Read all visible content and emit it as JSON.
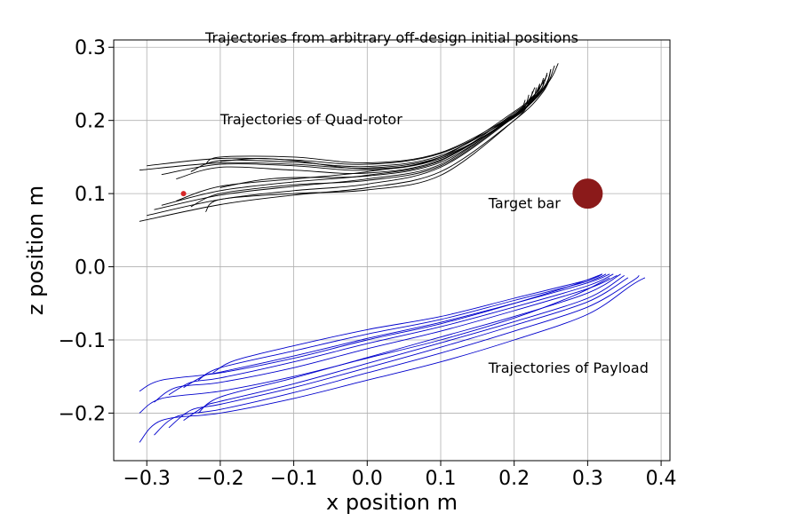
{
  "chart_data": {
    "type": "line",
    "title": "Trajectories from arbitrary off-design initial positions",
    "xlabel": "x position m",
    "ylabel": "z position m",
    "xlim": [
      -0.345,
      0.412
    ],
    "ylim": [
      -0.265,
      0.31
    ],
    "xticks": [
      -0.3,
      -0.2,
      -0.1,
      0.0,
      0.1,
      0.2,
      0.3,
      0.4
    ],
    "xtick_labels": [
      "−0.3",
      "−0.2",
      "−0.1",
      "0.0",
      "0.1",
      "0.2",
      "0.3",
      "0.4"
    ],
    "yticks": [
      -0.2,
      -0.1,
      0.0,
      0.1,
      0.2,
      0.3
    ],
    "ytick_labels": [
      "−0.2",
      "−0.1",
      "0.0",
      "0.1",
      "0.2",
      "0.3"
    ],
    "grid": true,
    "colors": {
      "quad_rotor": "#000000",
      "payload": "#0000cc",
      "target": "#8b1a1a",
      "start_marker": "#d62728"
    },
    "annotations": [
      {
        "text": "Trajectories of Quad-rotor",
        "x": -0.2,
        "y": 0.195
      },
      {
        "text": "Target bar",
        "x": 0.165,
        "y": 0.08
      },
      {
        "text": "Trajectories of Payload",
        "x": 0.165,
        "y": -0.145
      }
    ],
    "target_bar": {
      "x": 0.3,
      "y": 0.1
    },
    "start_marker": {
      "x": -0.25,
      "y": 0.1
    },
    "series": [
      {
        "group": "quad",
        "points": [
          [
            -0.31,
            0.062
          ],
          [
            -0.2,
            0.085
          ],
          [
            -0.1,
            0.098
          ],
          [
            0.0,
            0.108
          ],
          [
            0.1,
            0.13
          ],
          [
            0.2,
            0.2
          ],
          [
            0.24,
            0.24
          ],
          [
            0.255,
            0.275
          ]
        ]
      },
      {
        "group": "quad",
        "points": [
          [
            -0.3,
            0.07
          ],
          [
            -0.2,
            0.092
          ],
          [
            -0.1,
            0.104
          ],
          [
            0.0,
            0.113
          ],
          [
            0.1,
            0.136
          ],
          [
            0.2,
            0.205
          ],
          [
            0.24,
            0.242
          ],
          [
            0.25,
            0.27
          ]
        ]
      },
      {
        "group": "quad",
        "points": [
          [
            -0.29,
            0.078
          ],
          [
            -0.2,
            0.098
          ],
          [
            -0.1,
            0.11
          ],
          [
            0.0,
            0.12
          ],
          [
            0.1,
            0.14
          ],
          [
            0.2,
            0.208
          ],
          [
            0.23,
            0.238
          ],
          [
            0.245,
            0.262
          ]
        ]
      },
      {
        "group": "quad",
        "points": [
          [
            -0.28,
            0.084
          ],
          [
            -0.2,
            0.104
          ],
          [
            -0.1,
            0.116
          ],
          [
            0.0,
            0.125
          ],
          [
            0.1,
            0.145
          ],
          [
            0.2,
            0.21
          ],
          [
            0.235,
            0.24
          ],
          [
            0.24,
            0.255
          ]
        ]
      },
      {
        "group": "quad",
        "points": [
          [
            -0.26,
            0.09
          ],
          [
            -0.2,
            0.11
          ],
          [
            -0.1,
            0.12
          ],
          [
            0.0,
            0.13
          ],
          [
            0.1,
            0.15
          ],
          [
            0.2,
            0.212
          ],
          [
            0.23,
            0.238
          ],
          [
            0.235,
            0.25
          ]
        ]
      },
      {
        "group": "quad",
        "points": [
          [
            -0.24,
            0.082
          ],
          [
            -0.2,
            0.1
          ],
          [
            -0.1,
            0.112
          ],
          [
            0.0,
            0.118
          ],
          [
            0.1,
            0.138
          ],
          [
            0.2,
            0.206
          ],
          [
            0.225,
            0.228
          ],
          [
            0.23,
            0.245
          ]
        ]
      },
      {
        "group": "quad",
        "points": [
          [
            -0.22,
            0.075
          ],
          [
            -0.2,
            0.092
          ],
          [
            -0.1,
            0.1
          ],
          [
            0.0,
            0.105
          ],
          [
            0.1,
            0.125
          ],
          [
            0.2,
            0.2
          ],
          [
            0.22,
            0.225
          ],
          [
            0.225,
            0.24
          ]
        ]
      },
      {
        "group": "quad",
        "points": [
          [
            -0.31,
            0.132
          ],
          [
            -0.2,
            0.142
          ],
          [
            -0.1,
            0.14
          ],
          [
            0.0,
            0.135
          ],
          [
            0.1,
            0.15
          ],
          [
            0.2,
            0.204
          ],
          [
            0.245,
            0.25
          ],
          [
            0.26,
            0.278
          ]
        ]
      },
      {
        "group": "quad",
        "points": [
          [
            -0.3,
            0.138
          ],
          [
            -0.2,
            0.148
          ],
          [
            -0.1,
            0.146
          ],
          [
            0.0,
            0.14
          ],
          [
            0.1,
            0.155
          ],
          [
            0.2,
            0.206
          ],
          [
            0.24,
            0.245
          ],
          [
            0.25,
            0.27
          ]
        ]
      },
      {
        "group": "quad",
        "points": [
          [
            -0.28,
            0.126
          ],
          [
            -0.2,
            0.14
          ],
          [
            -0.1,
            0.138
          ],
          [
            0.0,
            0.132
          ],
          [
            0.1,
            0.148
          ],
          [
            0.2,
            0.205
          ],
          [
            0.235,
            0.24
          ],
          [
            0.245,
            0.265
          ]
        ]
      },
      {
        "group": "quad",
        "points": [
          [
            -0.26,
            0.12
          ],
          [
            -0.2,
            0.136
          ],
          [
            -0.1,
            0.132
          ],
          [
            0.0,
            0.128
          ],
          [
            0.1,
            0.146
          ],
          [
            0.2,
            0.206
          ],
          [
            0.23,
            0.235
          ],
          [
            0.24,
            0.258
          ]
        ]
      },
      {
        "group": "quad",
        "points": [
          [
            -0.24,
            0.13
          ],
          [
            -0.2,
            0.145
          ],
          [
            -0.1,
            0.143
          ],
          [
            0.0,
            0.137
          ],
          [
            0.1,
            0.152
          ],
          [
            0.2,
            0.207
          ],
          [
            0.225,
            0.23
          ],
          [
            0.235,
            0.25
          ]
        ]
      },
      {
        "group": "quad",
        "points": [
          [
            -0.22,
            0.14
          ],
          [
            -0.2,
            0.15
          ],
          [
            -0.1,
            0.15
          ],
          [
            0.0,
            0.142
          ],
          [
            0.1,
            0.156
          ],
          [
            0.2,
            0.208
          ],
          [
            0.22,
            0.228
          ],
          [
            0.228,
            0.245
          ]
        ]
      },
      {
        "group": "quad",
        "points": [
          [
            -0.2,
            0.144
          ],
          [
            -0.15,
            0.148
          ],
          [
            -0.1,
            0.145
          ],
          [
            0.0,
            0.134
          ],
          [
            0.1,
            0.148
          ],
          [
            0.2,
            0.204
          ],
          [
            0.215,
            0.22
          ],
          [
            0.22,
            0.235
          ]
        ]
      },
      {
        "group": "quad",
        "points": [
          [
            -0.2,
            0.108
          ],
          [
            -0.15,
            0.118
          ],
          [
            -0.1,
            0.122
          ],
          [
            0.0,
            0.124
          ],
          [
            0.1,
            0.143
          ],
          [
            0.2,
            0.205
          ],
          [
            0.21,
            0.215
          ],
          [
            0.215,
            0.228
          ]
        ]
      },
      {
        "group": "payload",
        "points": [
          [
            -0.31,
            -0.17
          ],
          [
            -0.28,
            -0.155
          ],
          [
            -0.2,
            -0.145
          ],
          [
            -0.1,
            -0.125
          ],
          [
            0.0,
            -0.1
          ],
          [
            0.1,
            -0.078
          ],
          [
            0.2,
            -0.05
          ],
          [
            0.28,
            -0.025
          ],
          [
            0.32,
            -0.01
          ]
        ]
      },
      {
        "group": "payload",
        "points": [
          [
            -0.31,
            -0.2
          ],
          [
            -0.28,
            -0.18
          ],
          [
            -0.2,
            -0.17
          ],
          [
            -0.1,
            -0.15
          ],
          [
            0.0,
            -0.125
          ],
          [
            0.1,
            -0.1
          ],
          [
            0.2,
            -0.07
          ],
          [
            0.28,
            -0.04
          ],
          [
            0.33,
            -0.015
          ]
        ]
      },
      {
        "group": "payload",
        "points": [
          [
            -0.31,
            -0.24
          ],
          [
            -0.28,
            -0.21
          ],
          [
            -0.2,
            -0.2
          ],
          [
            -0.1,
            -0.18
          ],
          [
            0.0,
            -0.155
          ],
          [
            0.1,
            -0.13
          ],
          [
            0.2,
            -0.1
          ],
          [
            0.3,
            -0.065
          ],
          [
            0.36,
            -0.025
          ],
          [
            0.378,
            -0.015
          ]
        ]
      },
      {
        "group": "payload",
        "points": [
          [
            -0.29,
            -0.23
          ],
          [
            -0.26,
            -0.205
          ],
          [
            -0.2,
            -0.195
          ],
          [
            -0.1,
            -0.172
          ],
          [
            0.0,
            -0.145
          ],
          [
            0.1,
            -0.118
          ],
          [
            0.2,
            -0.088
          ],
          [
            0.3,
            -0.055
          ],
          [
            0.36,
            -0.02
          ],
          [
            0.37,
            -0.012
          ]
        ]
      },
      {
        "group": "payload",
        "points": [
          [
            -0.27,
            -0.22
          ],
          [
            -0.24,
            -0.196
          ],
          [
            -0.2,
            -0.188
          ],
          [
            -0.1,
            -0.165
          ],
          [
            0.0,
            -0.138
          ],
          [
            0.1,
            -0.11
          ],
          [
            0.2,
            -0.08
          ],
          [
            0.3,
            -0.048
          ],
          [
            0.355,
            -0.015
          ]
        ]
      },
      {
        "group": "payload",
        "points": [
          [
            -0.25,
            -0.21
          ],
          [
            -0.22,
            -0.19
          ],
          [
            -0.2,
            -0.184
          ],
          [
            -0.1,
            -0.16
          ],
          [
            0.0,
            -0.132
          ],
          [
            0.1,
            -0.104
          ],
          [
            0.2,
            -0.075
          ],
          [
            0.3,
            -0.043
          ],
          [
            0.35,
            -0.012
          ]
        ]
      },
      {
        "group": "payload",
        "points": [
          [
            -0.23,
            -0.2
          ],
          [
            -0.2,
            -0.178
          ],
          [
            -0.1,
            -0.152
          ],
          [
            0.0,
            -0.124
          ],
          [
            0.1,
            -0.096
          ],
          [
            0.2,
            -0.068
          ],
          [
            0.3,
            -0.036
          ],
          [
            0.345,
            -0.01
          ]
        ]
      },
      {
        "group": "payload",
        "points": [
          [
            -0.29,
            -0.185
          ],
          [
            -0.26,
            -0.165
          ],
          [
            -0.2,
            -0.158
          ],
          [
            -0.1,
            -0.138
          ],
          [
            0.0,
            -0.112
          ],
          [
            0.1,
            -0.088
          ],
          [
            0.2,
            -0.06
          ],
          [
            0.3,
            -0.03
          ],
          [
            0.34,
            -0.012
          ]
        ]
      },
      {
        "group": "payload",
        "points": [
          [
            -0.27,
            -0.175
          ],
          [
            -0.24,
            -0.158
          ],
          [
            -0.2,
            -0.152
          ],
          [
            -0.1,
            -0.13
          ],
          [
            0.0,
            -0.105
          ],
          [
            0.1,
            -0.082
          ],
          [
            0.2,
            -0.055
          ],
          [
            0.3,
            -0.026
          ],
          [
            0.335,
            -0.01
          ]
        ]
      },
      {
        "group": "payload",
        "points": [
          [
            -0.25,
            -0.165
          ],
          [
            -0.22,
            -0.148
          ],
          [
            -0.2,
            -0.144
          ],
          [
            -0.1,
            -0.122
          ],
          [
            0.0,
            -0.098
          ],
          [
            0.1,
            -0.076
          ],
          [
            0.2,
            -0.05
          ],
          [
            0.3,
            -0.022
          ],
          [
            0.33,
            -0.01
          ]
        ]
      },
      {
        "group": "payload",
        "points": [
          [
            -0.23,
            -0.155
          ],
          [
            -0.2,
            -0.138
          ],
          [
            -0.1,
            -0.115
          ],
          [
            0.0,
            -0.092
          ],
          [
            0.1,
            -0.072
          ],
          [
            0.2,
            -0.046
          ],
          [
            0.3,
            -0.02
          ],
          [
            0.325,
            -0.01
          ]
        ]
      },
      {
        "group": "payload",
        "points": [
          [
            -0.21,
            -0.145
          ],
          [
            -0.18,
            -0.128
          ],
          [
            -0.1,
            -0.108
          ],
          [
            0.0,
            -0.086
          ],
          [
            0.1,
            -0.068
          ],
          [
            0.2,
            -0.043
          ],
          [
            0.3,
            -0.018
          ],
          [
            0.32,
            -0.01
          ]
        ]
      }
    ]
  }
}
